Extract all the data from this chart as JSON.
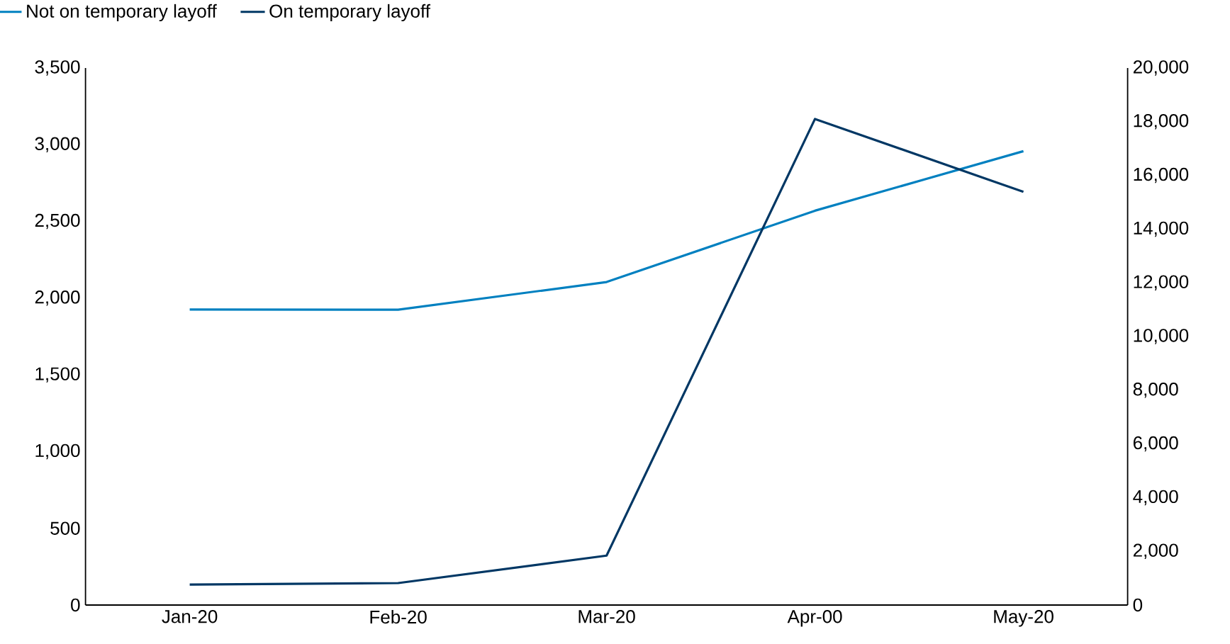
{
  "chart_data": {
    "type": "line",
    "categories": [
      "Jan-20",
      "Feb-20",
      "Mar-20",
      "Apr-00",
      "May-20"
    ],
    "series": [
      {
        "name": "Not on temporary layoff",
        "color": "#0080c0",
        "values": [
          1926,
          1925,
          2105,
          2570,
          2958
        ]
      },
      {
        "name": "On temporary layoff",
        "color": "#003764",
        "axis": "y2",
        "values": [
          759,
          818,
          1839,
          18102,
          15387
        ]
      }
    ],
    "ylim": [
      0,
      3500
    ],
    "yticks": [
      {
        "value": 0,
        "label": "0"
      },
      {
        "value": 500,
        "label": "500"
      },
      {
        "value": 1000,
        "label": "1,000"
      },
      {
        "value": 1500,
        "label": "1,500"
      },
      {
        "value": 2000,
        "label": "2,000"
      },
      {
        "value": 2500,
        "label": "2,500"
      },
      {
        "value": 3000,
        "label": "3,000"
      },
      {
        "value": 3500,
        "label": "3,500"
      }
    ],
    "y2lim": [
      0,
      20000
    ],
    "y2ticks": [
      {
        "value": 0,
        "label": "0"
      },
      {
        "value": 2000,
        "label": "2,000"
      },
      {
        "value": 4000,
        "label": "4,000"
      },
      {
        "value": 6000,
        "label": "6,000"
      },
      {
        "value": 8000,
        "label": "8,000"
      },
      {
        "value": 10000,
        "label": "10,000"
      },
      {
        "value": 12000,
        "label": "12,000"
      },
      {
        "value": 14000,
        "label": "14,000"
      },
      {
        "value": 16000,
        "label": "16,000"
      },
      {
        "value": 18000,
        "label": "18,000"
      },
      {
        "value": 20000,
        "label": "20,000"
      }
    ],
    "legend": "top left",
    "grid": false,
    "marker": "none",
    "line_style": "solid"
  }
}
